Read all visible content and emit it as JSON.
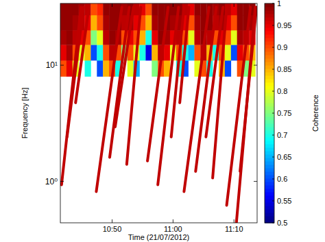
{
  "chart_data": {
    "type": "heatmap",
    "x_label": "Time (21/07/2012)",
    "y_label": "Frequency [Hz]",
    "log": "y",
    "xlim": [
      641.5,
      673.8
    ],
    "xticks": [
      {
        "value": 650,
        "label": "10:50"
      },
      {
        "value": 660,
        "label": "11:00"
      },
      {
        "value": 670,
        "label": "11:10"
      }
    ],
    "ylim": [
      0.44,
      34
    ],
    "yticks": [
      {
        "value": 1,
        "label": "10⁰"
      },
      {
        "value": 10,
        "label": "10¹"
      }
    ],
    "series": [
      {
        "type": "line",
        "color": "#c00000",
        "x": [
          641.7,
          644.9
        ],
        "values": [
          0.935,
          31.6
        ]
      },
      {
        "type": "line",
        "color": "#c00000",
        "x": [
          642.6,
          645.3
        ],
        "values": [
          2.41,
          31.6
        ]
      },
      {
        "type": "line",
        "color": "#c00000",
        "x": [
          644.0,
          646.2
        ],
        "values": [
          4.75,
          31.6
        ]
      },
      {
        "type": "line",
        "color": "#c00000",
        "x": [
          647.4,
          651.6
        ],
        "values": [
          0.816,
          31.6
        ]
      },
      {
        "type": "line",
        "color": "#c00000",
        "x": [
          649.6,
          652.8
        ],
        "values": [
          1.61,
          31.6
        ]
      },
      {
        "type": "line",
        "color": "#c00000",
        "x": [
          650.5,
          653.5
        ],
        "values": [
          2.95,
          31.6
        ]
      },
      {
        "type": "line",
        "color": "#c00000",
        "x": [
          652.4,
          654.7
        ],
        "values": [
          1.4,
          31.6
        ]
      },
      {
        "type": "line",
        "color": "#c00000",
        "x": [
          655.8,
          659.2
        ],
        "values": [
          1.5,
          31.6
        ]
      },
      {
        "type": "line",
        "color": "#c00000",
        "x": [
          657.5,
          660.9
        ],
        "values": [
          0.935,
          31.6
        ]
      },
      {
        "type": "line",
        "color": "#c00000",
        "x": [
          659.7,
          661.8
        ],
        "values": [
          2.41,
          31.6
        ]
      },
      {
        "type": "line",
        "color": "#c00000",
        "x": [
          661.1,
          662.6
        ],
        "values": [
          4.75,
          31.6
        ]
      },
      {
        "type": "line",
        "color": "#c00000",
        "x": [
          661.8,
          665.9
        ],
        "values": [
          0.816,
          31.6
        ]
      },
      {
        "type": "line",
        "color": "#c00000",
        "x": [
          663.7,
          667.1
        ],
        "values": [
          1.22,
          31.6
        ]
      },
      {
        "type": "line",
        "color": "#c00000",
        "x": [
          665.4,
          668.2
        ],
        "values": [
          2.41,
          31.6
        ]
      },
      {
        "type": "line",
        "color": "#c00000",
        "x": [
          666.5,
          668.8
        ],
        "values": [
          1.07,
          31.6
        ]
      },
      {
        "type": "line",
        "color": "#c00000",
        "x": [
          668.8,
          672.7
        ],
        "values": [
          0.622,
          31.6
        ]
      },
      {
        "type": "line",
        "color": "#c00000",
        "x": [
          670.4,
          673.5
        ],
        "values": [
          0.443,
          31.6
        ]
      },
      {
        "type": "line",
        "color": "#c00000",
        "x": [
          671.0,
          673.7
        ],
        "values": [
          1.22,
          31.6
        ]
      }
    ],
    "cells": {
      "x": [
        641.5,
        642.5,
        643.5,
        644.5,
        645.5,
        646.5,
        647.5,
        648.5,
        649.5,
        650.5,
        651.5,
        652.5,
        653.5,
        654.5,
        655.5,
        656.5,
        657.5,
        658.5,
        659.5,
        660.5,
        661.5,
        662.5,
        663.5,
        664.5,
        665.5,
        666.5,
        667.5,
        668.5,
        669.5,
        670.5,
        671.5,
        672.5,
        673.5
      ],
      "y": [
        8,
        11,
        15,
        20,
        27,
        34
      ],
      "values": [
        [
          0.9,
          0.95,
          0.8,
          null,
          0.7,
          null,
          0.6,
          0.85,
          0.9,
          0.7,
          null,
          0.8,
          0.65,
          null,
          null,
          0.75,
          0.9,
          0.85,
          null,
          0.7,
          0.6,
          null,
          0.8,
          0.9,
          0.7,
          null,
          0.85,
          0.6,
          null,
          0.9,
          0.75,
          0.8
        ],
        [
          0.95,
          0.98,
          0.9,
          0.8,
          0.85,
          0.6,
          0.7,
          0.9,
          0.97,
          0.9,
          0.75,
          0.9,
          0.8,
          0.7,
          0.55,
          0.85,
          0.97,
          0.95,
          0.8,
          0.9,
          0.7,
          0.65,
          0.9,
          0.97,
          0.85,
          0.7,
          0.9,
          0.8,
          0.6,
          0.95,
          0.9,
          0.85
        ],
        [
          0.98,
          0.99,
          0.97,
          0.95,
          0.9,
          0.75,
          0.8,
          0.97,
          0.99,
          0.98,
          0.9,
          0.95,
          0.9,
          0.85,
          0.7,
          0.95,
          0.99,
          0.98,
          0.95,
          0.97,
          0.9,
          0.8,
          0.97,
          0.99,
          0.97,
          0.9,
          0.95,
          0.9,
          0.8,
          0.98,
          0.97,
          0.95
        ],
        [
          0.99,
          0.99,
          0.98,
          0.97,
          0.95,
          0.85,
          0.9,
          0.98,
          0.99,
          0.99,
          0.97,
          0.98,
          0.95,
          0.9,
          0.85,
          0.98,
          0.99,
          0.99,
          0.98,
          0.98,
          0.95,
          0.9,
          0.98,
          0.99,
          0.99,
          0.97,
          0.98,
          0.95,
          0.9,
          0.99,
          0.99,
          0.98
        ],
        [
          0.99,
          0.99,
          0.99,
          0.98,
          0.97,
          0.9,
          0.92,
          0.99,
          0.99,
          0.99,
          0.98,
          0.99,
          0.97,
          0.95,
          0.9,
          0.99,
          0.99,
          0.99,
          0.99,
          0.99,
          0.97,
          0.95,
          0.99,
          0.99,
          0.99,
          0.98,
          0.99,
          0.97,
          0.95,
          0.99,
          0.99,
          0.99
        ]
      ]
    },
    "colorbar": {
      "label": "Coherence",
      "range": [
        0.5,
        1
      ],
      "ticks": [
        0.5,
        0.55,
        0.6,
        0.65,
        0.7,
        0.75,
        0.8,
        0.85,
        0.9,
        0.95,
        1
      ]
    }
  }
}
